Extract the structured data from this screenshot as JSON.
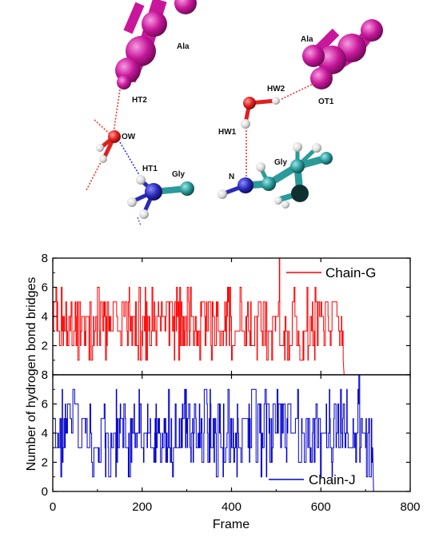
{
  "molecule_panel": {
    "left_labels": {
      "ala": "Ala",
      "ht2": "HT2",
      "ow": "OW",
      "ht1": "HT1",
      "gly": "Gly"
    },
    "right_labels": {
      "ala": "Ala",
      "hw2": "HW2",
      "ot1": "OT1",
      "hw1": "HW1",
      "n": "N",
      "gly": "Gly"
    },
    "colors": {
      "ala": "#c8179b",
      "oxygen": "#e02020",
      "hydrogen": "#e6e6e6",
      "nitrogen": "#2a2ab8",
      "carbon": "#2a9a9a",
      "hbond_red": "#ff3030",
      "hbond_blue": "#3030ff"
    }
  },
  "chart_data": [
    {
      "type": "line",
      "panel": "top",
      "series": [
        {
          "name": "Chain-G",
          "color": "#ff0000",
          "frame_range": [
            0,
            800
          ],
          "active_until": 650,
          "typical_range": [
            2,
            5
          ],
          "spikes": [
            [
              507,
              8
            ],
            [
              650,
              1
            ]
          ]
        }
      ],
      "ylim": [
        0,
        8
      ],
      "y_ticks": [
        "2",
        "4",
        "6",
        "8"
      ],
      "legend": {
        "label": "Chain-G",
        "position": "top-right"
      }
    },
    {
      "type": "line",
      "panel": "bottom",
      "series": [
        {
          "name": "Chain-J",
          "color": "#0000cc",
          "frame_range": [
            0,
            800
          ],
          "active_until": 716,
          "typical_range": [
            2,
            6
          ],
          "spikes": [
            [
              683,
              7
            ],
            [
              685,
              8
            ]
          ]
        }
      ],
      "ylim": [
        0,
        8
      ],
      "y_ticks": [
        "0",
        "2",
        "4",
        "6",
        "8"
      ],
      "legend": {
        "label": "Chain-J",
        "position": "bottom-center"
      }
    }
  ],
  "axes": {
    "xlabel": "Frame",
    "ylabel": "Number of hydrogen bond bridges",
    "x_ticks": [
      "0",
      "200",
      "400",
      "600",
      "800"
    ]
  }
}
